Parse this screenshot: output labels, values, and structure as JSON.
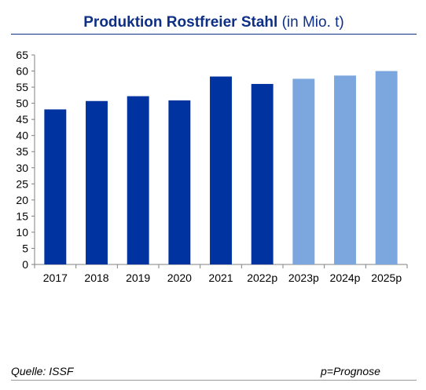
{
  "chart_data": {
    "type": "bar",
    "title": "Produktion Rostfreier Stahl",
    "subtitle": "(in Mio. t)",
    "categories": [
      "2017",
      "2018",
      "2019",
      "2020",
      "2021",
      "2022p",
      "2023p",
      "2024p",
      "2025p"
    ],
    "values": [
      48.1,
      50.7,
      52.2,
      50.9,
      58.3,
      56.0,
      57.6,
      58.6,
      60.0
    ],
    "forecast": [
      false,
      false,
      false,
      false,
      false,
      false,
      true,
      true,
      true
    ],
    "xlabel": "",
    "ylabel": "",
    "ylim": [
      0,
      65
    ],
    "yticks": [
      0,
      5,
      10,
      15,
      20,
      25,
      30,
      35,
      40,
      45,
      50,
      55,
      60,
      65
    ],
    "grid": false,
    "colors": {
      "actual": "#0033a0",
      "forecast": "#7ca6de",
      "title": "#0d2f86"
    }
  },
  "footer": {
    "source": "Quelle: ISSF",
    "note": "p=Prognose"
  }
}
